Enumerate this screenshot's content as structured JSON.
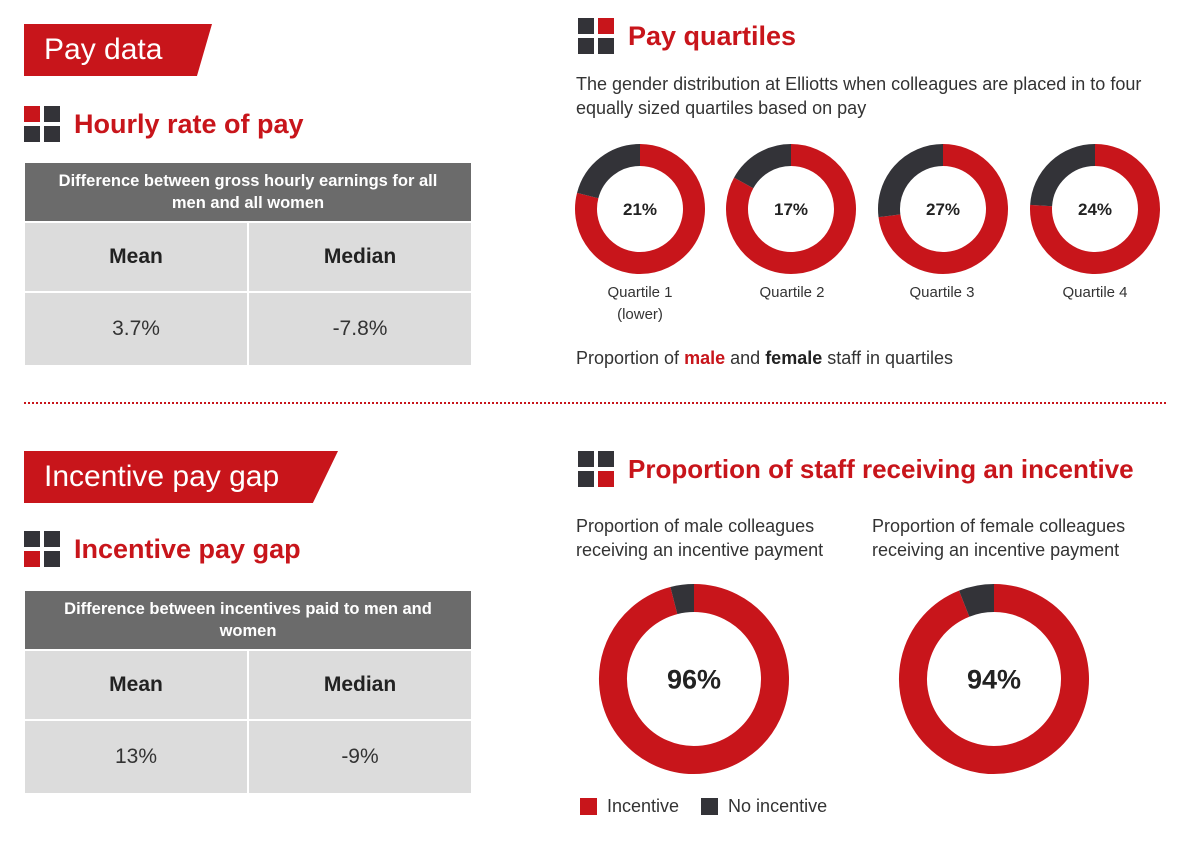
{
  "colors": {
    "red": "#c8151b",
    "dark": "#333338",
    "table_header": "#6b6b6b",
    "table_cell": "#dcdcdc"
  },
  "icon_pattern": {
    "pay_quartiles": [
      "dark",
      "red",
      "dark",
      "dark"
    ],
    "hourly": [
      "red",
      "dark",
      "dark",
      "dark"
    ],
    "incentive_gap": [
      "dark",
      "dark",
      "red",
      "dark"
    ],
    "proportion": [
      "dark",
      "dark",
      "dark",
      "red"
    ]
  },
  "banners": {
    "pay_data": "Pay data",
    "incentive_pay_gap": "Incentive pay gap"
  },
  "hourly": {
    "title": "Hourly rate of pay",
    "table_header": "Difference between gross hourly earnings for all men and all women",
    "col_mean": "Mean",
    "col_median": "Median",
    "mean": "3.7%",
    "median": "-7.8%"
  },
  "incentive_gap": {
    "title": "Incentive pay gap",
    "table_header": "Difference between incentives paid to men and women",
    "col_mean": "Mean",
    "col_median": "Median",
    "mean": "13%",
    "median": "-9%"
  },
  "pay_quartiles": {
    "title": "Pay quartiles",
    "description": "The gender distribution at Elliotts when colleagues are placed in to four equally sized quartiles based on pay",
    "caption_prefix": "Proportion of",
    "caption_male": "male",
    "caption_and": "and",
    "caption_female": "female",
    "caption_suffix": "staff in quartiles"
  },
  "proportion": {
    "title": "Proportion of staff receiving an incentive",
    "male_label": "Proportion of male colleagues receiving an incentive payment",
    "female_label": "Proportion of female colleagues receiving an incentive payment",
    "legend_incentive": "Incentive",
    "legend_no_incentive": "No incentive"
  },
  "chart_data": [
    {
      "type": "pie",
      "subtype": "donut",
      "title": "Pay quartiles",
      "categories": [
        "Quartile 1 (lower)",
        "Quartile 2",
        "Quartile 3",
        "Quartile 4"
      ],
      "category_labels": [
        [
          "Quartile 1",
          "(lower)"
        ],
        [
          "Quartile 2"
        ],
        [
          "Quartile 3"
        ],
        [
          "Quartile 4"
        ]
      ],
      "series": [
        {
          "name": "female",
          "values": [
            21,
            17,
            27,
            24
          ],
          "color": "#333338"
        },
        {
          "name": "male",
          "values": [
            79,
            83,
            73,
            76
          ],
          "color": "#c8151b"
        }
      ],
      "center_labels": [
        "21%",
        "17%",
        "27%",
        "24%"
      ]
    },
    {
      "type": "pie",
      "subtype": "donut",
      "title": "Proportion of staff receiving an incentive",
      "categories": [
        "Proportion of male colleagues receiving an incentive payment",
        "Proportion of female colleagues receiving an incentive payment"
      ],
      "series": [
        {
          "name": "Incentive",
          "values": [
            96,
            94
          ],
          "color": "#c8151b"
        },
        {
          "name": "No incentive",
          "values": [
            4,
            6
          ],
          "color": "#333338"
        }
      ],
      "center_labels": [
        "96%",
        "94%"
      ],
      "legend": "bottom-left"
    }
  ]
}
